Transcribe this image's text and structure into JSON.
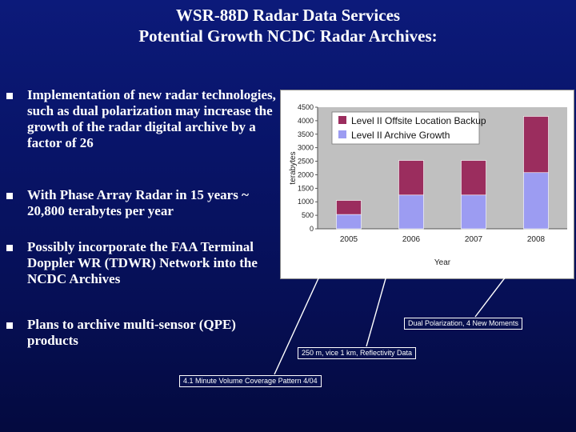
{
  "title": {
    "line1": "WSR-88D Radar Data Services",
    "line2": "Potential Growth NCDC Radar Archives:"
  },
  "bullets": [
    {
      "text": "Implementation of new radar technologies, such as dual polarization may increase the growth of the radar digital archive by a factor of 26"
    },
    {
      "text": "With Phase Array Radar in 15 years ~ 20,800 terabytes per year"
    },
    {
      "text": "Possibly  incorporate the FAA Terminal Doppler WR (TDWR) Network into the NCDC Archives"
    },
    {
      "text": "Plans to archive multi-sensor (QPE) products"
    }
  ],
  "callouts": {
    "dual_pol": "Dual Polarization, 4 New Moments",
    "reflectivity": "250 m, vice 1 km,  Reflectivity Data",
    "vcp": "4.1 Minute Volume Coverage Pattern 4/04"
  },
  "chart_data": {
    "type": "bar",
    "stacked": true,
    "categories": [
      "2005",
      "2006",
      "2007",
      "2008"
    ],
    "series": [
      {
        "name": "Level II Archive Growth",
        "color": "#9c9cf2",
        "values": [
          530,
          1250,
          1250,
          2080
        ]
      },
      {
        "name": "Level II Offsite Location Backup",
        "color": "#9b2d5e",
        "values": [
          520,
          1280,
          1280,
          2080
        ]
      }
    ],
    "xlabel": "Year",
    "ylabel": "terabytes",
    "ylim": [
      0,
      4500
    ],
    "yticks": [
      "0",
      "500",
      "1000",
      "1500",
      "2000",
      "2500",
      "3000",
      "3500",
      "4000",
      "4500"
    ],
    "legend_position": "top-left",
    "plot_background": "#c0c0c0",
    "grid": false
  }
}
